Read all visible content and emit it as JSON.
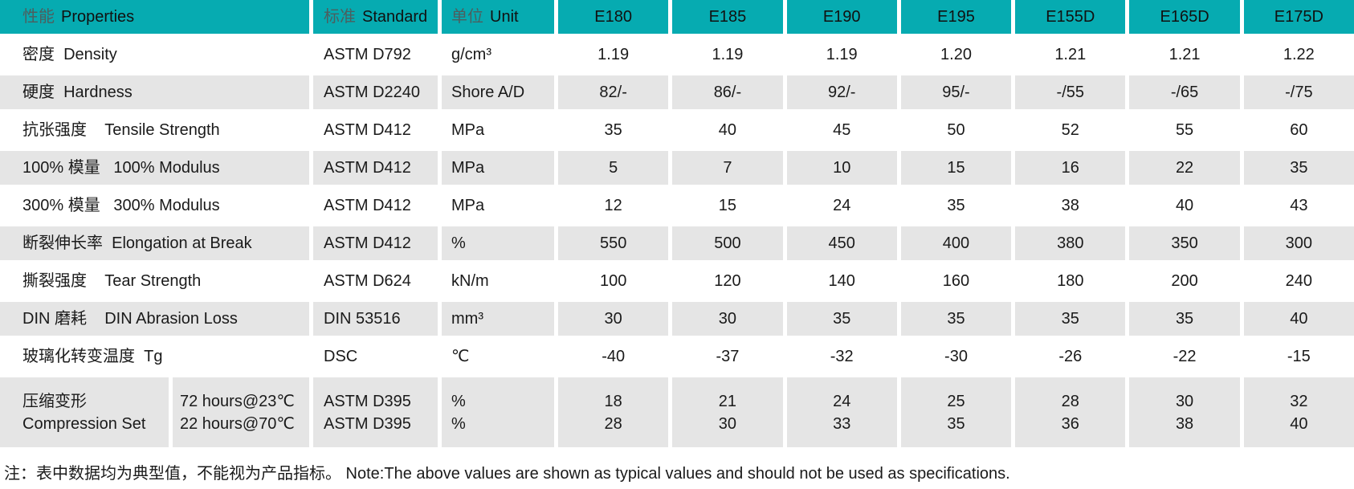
{
  "table": {
    "header": {
      "property": {
        "cn": "性能",
        "en": "Properties"
      },
      "standard": {
        "cn": "标准",
        "en": "Standard"
      },
      "unit": {
        "cn": "单位",
        "en": "Unit"
      },
      "grades": [
        "E180",
        "E185",
        "E190",
        "E195",
        "E155D",
        "E165D",
        "E175D"
      ]
    },
    "rows": [
      {
        "property": "密度  Density",
        "standard": "ASTM D792",
        "unit": "g/cm³",
        "shade": false,
        "values": [
          "1.19",
          "1.19",
          "1.19",
          "1.20",
          "1.21",
          "1.21",
          "1.22"
        ]
      },
      {
        "property": "硬度  Hardness",
        "standard": "ASTM D2240",
        "unit": "Shore A/D",
        "shade": true,
        "values": [
          "82/-",
          "86/-",
          "92/-",
          "95/-",
          "-/55",
          "-/65",
          "-/75"
        ]
      },
      {
        "property": "抗张强度    Tensile Strength",
        "standard": "ASTM D412",
        "unit": "MPa",
        "shade": false,
        "values": [
          "35",
          "40",
          "45",
          "50",
          "52",
          "55",
          "60"
        ]
      },
      {
        "property": "100% 模量   100% Modulus",
        "standard": "ASTM D412",
        "unit": "MPa",
        "shade": true,
        "values": [
          "5",
          "7",
          "10",
          "15",
          "16",
          "22",
          "35"
        ]
      },
      {
        "property": "300% 模量   300% Modulus",
        "standard": "ASTM D412",
        "unit": "MPa",
        "shade": false,
        "values": [
          "12",
          "15",
          "24",
          "35",
          "38",
          "40",
          "43"
        ]
      },
      {
        "property": "断裂伸长率  Elongation at Break",
        "standard": "ASTM D412",
        "unit": "%",
        "shade": true,
        "values": [
          "550",
          "500",
          "450",
          "400",
          "380",
          "350",
          "300"
        ]
      },
      {
        "property": "撕裂强度    Tear Strength",
        "standard": "ASTM D624",
        "unit": "kN/m",
        "shade": false,
        "values": [
          "100",
          "120",
          "140",
          "160",
          "180",
          "200",
          "240"
        ]
      },
      {
        "property": "DIN 磨耗    DIN Abrasion Loss",
        "standard": "DIN 53516",
        "unit": "mm³",
        "shade": true,
        "values": [
          "30",
          "30",
          "35",
          "35",
          "35",
          "35",
          "40"
        ]
      },
      {
        "property": "玻璃化转变温度  Tg",
        "standard": "DSC",
        "unit": "℃",
        "shade": false,
        "values": [
          "-40",
          "-37",
          "-32",
          "-30",
          "-26",
          "-22",
          "-15"
        ]
      }
    ],
    "compression_row": {
      "shade": true,
      "property_lines": [
        "压缩变形",
        "Compression Set"
      ],
      "condition_lines": [
        "72 hours@23℃",
        "22 hours@70℃"
      ],
      "standard_lines": [
        "ASTM D395",
        "ASTM D395"
      ],
      "unit_lines": [
        "%",
        "%"
      ],
      "values": [
        [
          "18",
          "28"
        ],
        [
          "21",
          "30"
        ],
        [
          "24",
          "33"
        ],
        [
          "25",
          "35"
        ],
        [
          "28",
          "36"
        ],
        [
          "30",
          "38"
        ],
        [
          "32",
          "40"
        ]
      ]
    }
  },
  "note": "注：表中数据均为典型值，不能视为产品指标。 Note:The above values are shown as typical values and should not be used as specifications.",
  "colors": {
    "header_teal": "#06abb1",
    "row_gray": "#e5e5e5",
    "row_white": "#ffffff",
    "text": "#1a1a1a"
  }
}
